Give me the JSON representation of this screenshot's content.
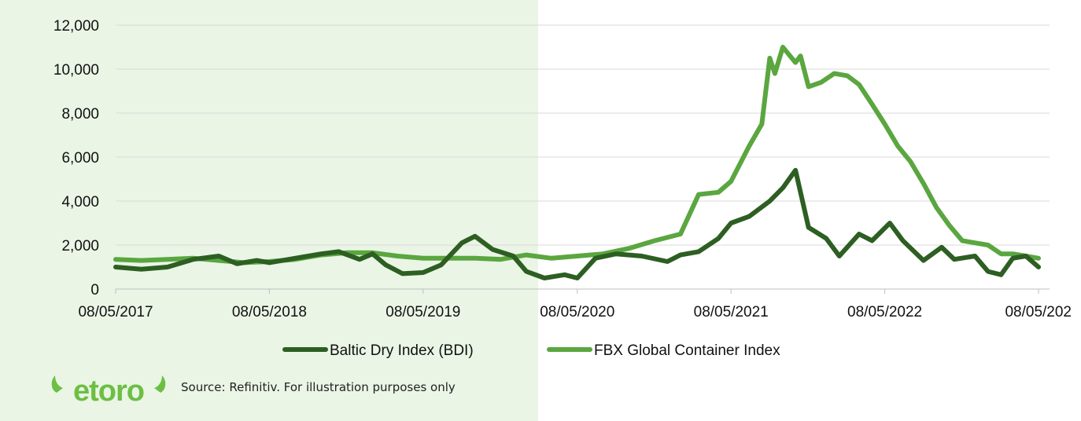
{
  "chart_data": {
    "type": "line",
    "title": "",
    "xlabel": "",
    "ylabel": "",
    "ylim": [
      0,
      12000
    ],
    "xlim": [
      "2017-05-08",
      "2023-05-08"
    ],
    "y_ticks": [
      "0",
      "2,000",
      "4,000",
      "6,000",
      "8,000",
      "10,000",
      "12,000"
    ],
    "x_ticks": [
      "08/05/2017",
      "08/05/2018",
      "08/05/2019",
      "08/05/2020",
      "08/05/2021",
      "08/05/2022",
      "08/05/202"
    ],
    "grid": true,
    "legend": "bottom",
    "series": [
      {
        "name": "Baltic Dry Index (BDI)",
        "color": "#2d5e22",
        "points": [
          [
            "2017-05-08",
            1000
          ],
          [
            "2017-07-08",
            900
          ],
          [
            "2017-09-08",
            1000
          ],
          [
            "2017-11-08",
            1350
          ],
          [
            "2018-01-08",
            1500
          ],
          [
            "2018-02-20",
            1150
          ],
          [
            "2018-04-08",
            1300
          ],
          [
            "2018-05-08",
            1200
          ],
          [
            "2018-07-08",
            1400
          ],
          [
            "2018-09-08",
            1600
          ],
          [
            "2018-10-20",
            1700
          ],
          [
            "2018-12-08",
            1350
          ],
          [
            "2019-01-08",
            1600
          ],
          [
            "2019-02-08",
            1100
          ],
          [
            "2019-03-20",
            700
          ],
          [
            "2019-05-08",
            750
          ],
          [
            "2019-06-20",
            1100
          ],
          [
            "2019-08-08",
            2100
          ],
          [
            "2019-09-08",
            2400
          ],
          [
            "2019-10-20",
            1800
          ],
          [
            "2019-12-08",
            1500
          ],
          [
            "2020-01-08",
            800
          ],
          [
            "2020-02-20",
            500
          ],
          [
            "2020-04-08",
            650
          ],
          [
            "2020-05-08",
            500
          ],
          [
            "2020-06-20",
            1400
          ],
          [
            "2020-08-08",
            1600
          ],
          [
            "2020-10-08",
            1500
          ],
          [
            "2020-12-08",
            1250
          ],
          [
            "2021-01-08",
            1550
          ],
          [
            "2021-02-20",
            1700
          ],
          [
            "2021-04-08",
            2300
          ],
          [
            "2021-05-08",
            3000
          ],
          [
            "2021-06-20",
            3300
          ],
          [
            "2021-08-08",
            4000
          ],
          [
            "2021-09-08",
            4600
          ],
          [
            "2021-10-08",
            5400
          ],
          [
            "2021-11-08",
            2800
          ],
          [
            "2021-12-20",
            2300
          ],
          [
            "2022-01-20",
            1500
          ],
          [
            "2022-03-08",
            2500
          ],
          [
            "2022-04-08",
            2200
          ],
          [
            "2022-05-20",
            3000
          ],
          [
            "2022-06-20",
            2200
          ],
          [
            "2022-08-08",
            1300
          ],
          [
            "2022-09-20",
            1900
          ],
          [
            "2022-10-20",
            1350
          ],
          [
            "2022-12-08",
            1500
          ],
          [
            "2023-01-08",
            800
          ],
          [
            "2023-02-08",
            650
          ],
          [
            "2023-03-08",
            1400
          ],
          [
            "2023-04-08",
            1500
          ],
          [
            "2023-05-08",
            1000
          ]
        ]
      },
      {
        "name": "FBX Global Container Index",
        "color": "#5aa63f",
        "points": [
          [
            "2017-05-08",
            1350
          ],
          [
            "2017-07-08",
            1300
          ],
          [
            "2017-09-08",
            1350
          ],
          [
            "2017-11-08",
            1400
          ],
          [
            "2018-01-08",
            1300
          ],
          [
            "2018-03-08",
            1200
          ],
          [
            "2018-05-08",
            1250
          ],
          [
            "2018-07-08",
            1350
          ],
          [
            "2018-09-08",
            1550
          ],
          [
            "2018-11-08",
            1650
          ],
          [
            "2019-01-08",
            1650
          ],
          [
            "2019-03-08",
            1500
          ],
          [
            "2019-05-08",
            1400
          ],
          [
            "2019-07-08",
            1400
          ],
          [
            "2019-09-08",
            1400
          ],
          [
            "2019-11-08",
            1350
          ],
          [
            "2020-01-08",
            1550
          ],
          [
            "2020-03-08",
            1400
          ],
          [
            "2020-05-08",
            1500
          ],
          [
            "2020-07-08",
            1600
          ],
          [
            "2020-09-08",
            1850
          ],
          [
            "2020-11-08",
            2200
          ],
          [
            "2021-01-08",
            2500
          ],
          [
            "2021-02-20",
            4300
          ],
          [
            "2021-04-08",
            4400
          ],
          [
            "2021-05-08",
            4900
          ],
          [
            "2021-06-20",
            6500
          ],
          [
            "2021-07-20",
            7500
          ],
          [
            "2021-08-08",
            10500
          ],
          [
            "2021-08-20",
            9800
          ],
          [
            "2021-09-08",
            11000
          ],
          [
            "2021-10-08",
            10300
          ],
          [
            "2021-10-20",
            10600
          ],
          [
            "2021-11-08",
            9200
          ],
          [
            "2021-12-08",
            9400
          ],
          [
            "2022-01-08",
            9800
          ],
          [
            "2022-02-08",
            9700
          ],
          [
            "2022-03-08",
            9300
          ],
          [
            "2022-04-08",
            8400
          ],
          [
            "2022-05-08",
            7500
          ],
          [
            "2022-06-08",
            6500
          ],
          [
            "2022-07-08",
            5800
          ],
          [
            "2022-08-08",
            4800
          ],
          [
            "2022-09-08",
            3700
          ],
          [
            "2022-10-08",
            2900
          ],
          [
            "2022-11-08",
            2200
          ],
          [
            "2022-12-08",
            2100
          ],
          [
            "2023-01-08",
            2000
          ],
          [
            "2023-02-08",
            1600
          ],
          [
            "2023-03-08",
            1600
          ],
          [
            "2023-04-08",
            1500
          ],
          [
            "2023-05-08",
            1400
          ]
        ]
      }
    ]
  },
  "footer": {
    "logo_text": "eToro",
    "source": "Source: Refinitiv. For illustration purposes only"
  }
}
